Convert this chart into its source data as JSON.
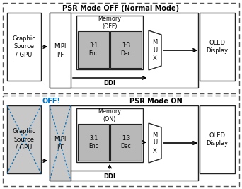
{
  "title_top": "PSR Mode OFF (Normal Mode)",
  "title_bottom": "PSR Mode ON",
  "off_label": "OFF!",
  "off_color": "#0070C0",
  "bg_color": "#ffffff",
  "gray_fill": "#c8c8c8",
  "memory_gray": "#d0d0d0",
  "enc_dec_gray": "#b8b8b8",
  "graphic_label": "Graphic\nSource\n/ GPU",
  "mipi_label": "MIPI\nI/F",
  "memory_off_label": "Memory\n(OFF)",
  "memory_on_label": "Memory\n(ON)",
  "enc_label": "3:1\nEnc",
  "dec_label": "1:3\nDec",
  "mux_label": "M\nU\nX",
  "oled_label": "OLED\nDisplay",
  "ddi_label": "DDI",
  "dash_color": "#555555",
  "box_color": "#222222"
}
